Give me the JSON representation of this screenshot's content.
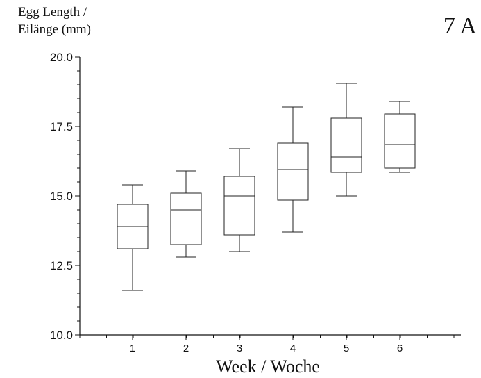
{
  "panel_label": "7 A",
  "chart_data": {
    "type": "box",
    "ylabel_line1": "Egg Length /",
    "ylabel_line2": "Eilänge (mm)",
    "xlabel": "Week / Woche",
    "ylim": [
      10.0,
      20.0
    ],
    "yticks": [
      "10.0",
      "12.5",
      "15.0",
      "17.5",
      "20.0"
    ],
    "categories": [
      "1",
      "2",
      "3",
      "4",
      "5",
      "6"
    ],
    "boxes": [
      {
        "min": 11.6,
        "q1": 13.1,
        "median": 13.9,
        "q3": 14.7,
        "max": 15.4
      },
      {
        "min": 12.8,
        "q1": 13.25,
        "median": 14.5,
        "q3": 15.1,
        "max": 15.9
      },
      {
        "min": 13.0,
        "q1": 13.6,
        "median": 15.0,
        "q3": 15.7,
        "max": 16.7
      },
      {
        "min": 13.7,
        "q1": 14.85,
        "median": 15.95,
        "q3": 16.9,
        "max": 18.2
      },
      {
        "min": 15.0,
        "q1": 15.85,
        "median": 16.4,
        "q3": 17.8,
        "max": 19.05
      },
      {
        "min": 15.85,
        "q1": 16.0,
        "median": 16.85,
        "q3": 17.95,
        "max": 18.4
      }
    ],
    "grid": false
  }
}
